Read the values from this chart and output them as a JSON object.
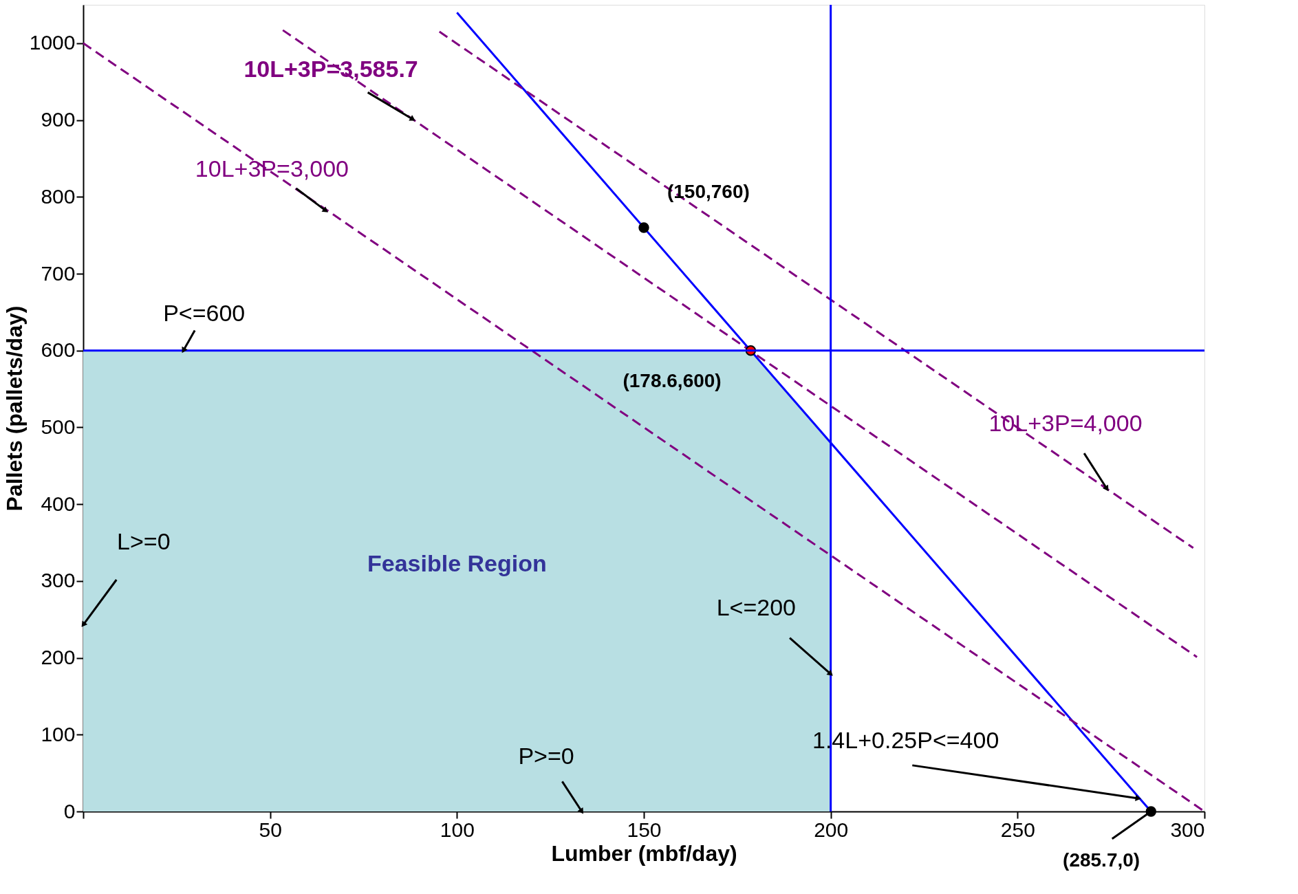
{
  "chart_data": {
    "type": "line",
    "xlabel": "Lumber (mbf/day)",
    "ylabel": "Pallets (pallets/day)",
    "xlim": [
      0,
      300
    ],
    "ylim": [
      0,
      1050
    ],
    "xticks": [
      {
        "value": 0,
        "label": null
      },
      50,
      100,
      150,
      200,
      250,
      300
    ],
    "yticks": [
      0,
      100,
      200,
      300,
      400,
      500,
      600,
      700,
      800,
      900,
      1000
    ],
    "grid": false,
    "series": [
      {
        "name": "Feasible Region",
        "type": "area",
        "color": "#b8dfe3",
        "x": [
          0,
          178.6,
          200
        ],
        "values": [
          600,
          600,
          480
        ]
      },
      {
        "color": "#0000ff",
        "line_style": "solid",
        "x": [
          100,
          285.7
        ],
        "values": [
          1040,
          0
        ]
      },
      {
        "color": "#800080",
        "line_style": "dashed",
        "x": [
          0,
          300
        ],
        "values": [
          1000,
          0
        ]
      },
      {
        "color": "#800080",
        "line_style": "dashed",
        "x": [
          53.4,
          298
        ],
        "values": [
          1017,
          201
        ]
      },
      {
        "color": "#800080",
        "line_style": "dashed",
        "x": [
          95.3,
          297
        ],
        "values": [
          1015,
          343
        ]
      },
      {
        "type": "scatter",
        "marker": "circle",
        "colors": [
          "#000000",
          "#ff0000",
          "#000000"
        ],
        "x": [
          150,
          178.6,
          285.7
        ],
        "values": [
          760,
          600,
          0
        ]
      }
    ],
    "ref_lines": [
      {
        "axis": "x",
        "value": 200,
        "color": "#0000ff"
      },
      {
        "axis": "y",
        "value": 600,
        "color": "#0000ff"
      }
    ],
    "annotations": [
      {
        "text": "10L+3P=3,585.7",
        "x": 88.2,
        "y": 901
      },
      {
        "text": "10L+3P=3,000",
        "x": 64.9,
        "y": 782
      },
      {
        "text": "10L+3P=4,000",
        "x": 273.9,
        "y": 420
      },
      {
        "text": "P<=600",
        "x": 26.8,
        "y": 600
      },
      {
        "text": "L<=200",
        "x": 200,
        "y": 179
      },
      {
        "text": "L>=0",
        "x": 0,
        "y": 243
      },
      {
        "text": "P>=0",
        "x": 133.4,
        "y": 0
      },
      {
        "text": "1.4L+0.25P<=400",
        "x": 282.3,
        "y": 17
      },
      {
        "text": "(150,760)",
        "x": 150,
        "y": 760
      },
      {
        "text": "(178.6,600)",
        "x": 178.6,
        "y": 600
      },
      {
        "text": "(285.7,0)",
        "x": 285.7,
        "y": 0
      }
    ]
  }
}
